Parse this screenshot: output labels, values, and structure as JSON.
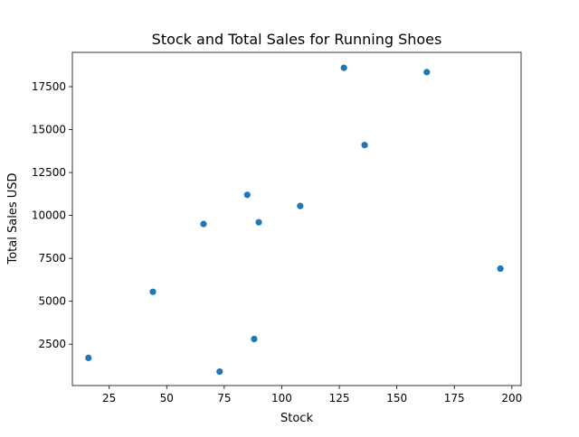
{
  "chart_data": {
    "type": "scatter",
    "title": "Stock and Total Sales for Running Shoes",
    "xlabel": "Stock",
    "ylabel": "Total Sales USD",
    "xlim": [
      9,
      204
    ],
    "ylim": [
      90,
      19500
    ],
    "x_ticks": [
      25,
      50,
      75,
      100,
      125,
      150,
      175,
      200
    ],
    "x_tick_labels": [
      "25",
      "50",
      "75",
      "100",
      "125",
      "150",
      "175",
      "200"
    ],
    "y_ticks": [
      2500,
      5000,
      7500,
      10000,
      12500,
      15000,
      17500
    ],
    "y_tick_labels": [
      "2500",
      "5000",
      "7500",
      "10000",
      "12500",
      "15000",
      "17500"
    ],
    "grid": false,
    "marker_color": "#1f77b4",
    "points": [
      {
        "x": 16,
        "y": 1700
      },
      {
        "x": 44,
        "y": 5550
      },
      {
        "x": 66,
        "y": 9500
      },
      {
        "x": 73,
        "y": 900
      },
      {
        "x": 85,
        "y": 11200
      },
      {
        "x": 88,
        "y": 2800
      },
      {
        "x": 90,
        "y": 9600
      },
      {
        "x": 108,
        "y": 10550
      },
      {
        "x": 127,
        "y": 18600
      },
      {
        "x": 136,
        "y": 14100
      },
      {
        "x": 163,
        "y": 18350
      },
      {
        "x": 195,
        "y": 6900
      }
    ]
  }
}
